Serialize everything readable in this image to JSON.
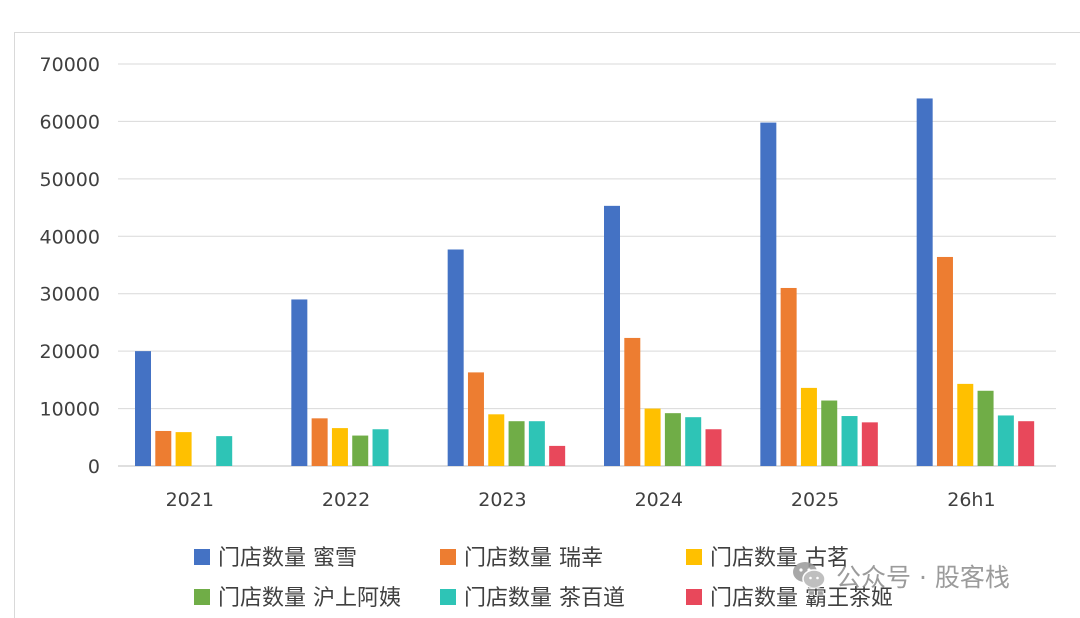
{
  "chart_data": {
    "type": "bar",
    "categories": [
      "2021",
      "2022",
      "2023",
      "2024",
      "2025",
      "26h1"
    ],
    "ylim": [
      0,
      70000
    ],
    "yticks": [
      0,
      10000,
      20000,
      30000,
      40000,
      50000,
      60000,
      70000
    ],
    "grid": true,
    "legend_position": "bottom",
    "series": [
      {
        "name": "门店数量 蜜雪",
        "color": "#4472C4",
        "values": [
          20000,
          29000,
          37700,
          45300,
          59800,
          64000
        ]
      },
      {
        "name": "门店数量 瑞幸",
        "color": "#ED7D31",
        "values": [
          6100,
          8300,
          16300,
          22300,
          31000,
          36400
        ]
      },
      {
        "name": "门店数量 古茗",
        "color": "#FFC000",
        "values": [
          5900,
          6600,
          9000,
          10000,
          13600,
          14300
        ]
      },
      {
        "name": "门店数量 沪上阿姨",
        "color": "#70AD47",
        "values": [
          null,
          5300,
          7800,
          9200,
          11400,
          13100
        ]
      },
      {
        "name": "门店数量 茶百道",
        "color": "#2EC4B6",
        "values": [
          5200,
          6400,
          7800,
          8500,
          8700,
          8800
        ]
      },
      {
        "name": "门店数量 霸王茶姬",
        "color": "#E8485B",
        "values": [
          null,
          null,
          3500,
          6400,
          7600,
          7800
        ]
      }
    ]
  },
  "watermark": {
    "text": "公众号 · 股客栈",
    "icon": "wechat-icon"
  }
}
